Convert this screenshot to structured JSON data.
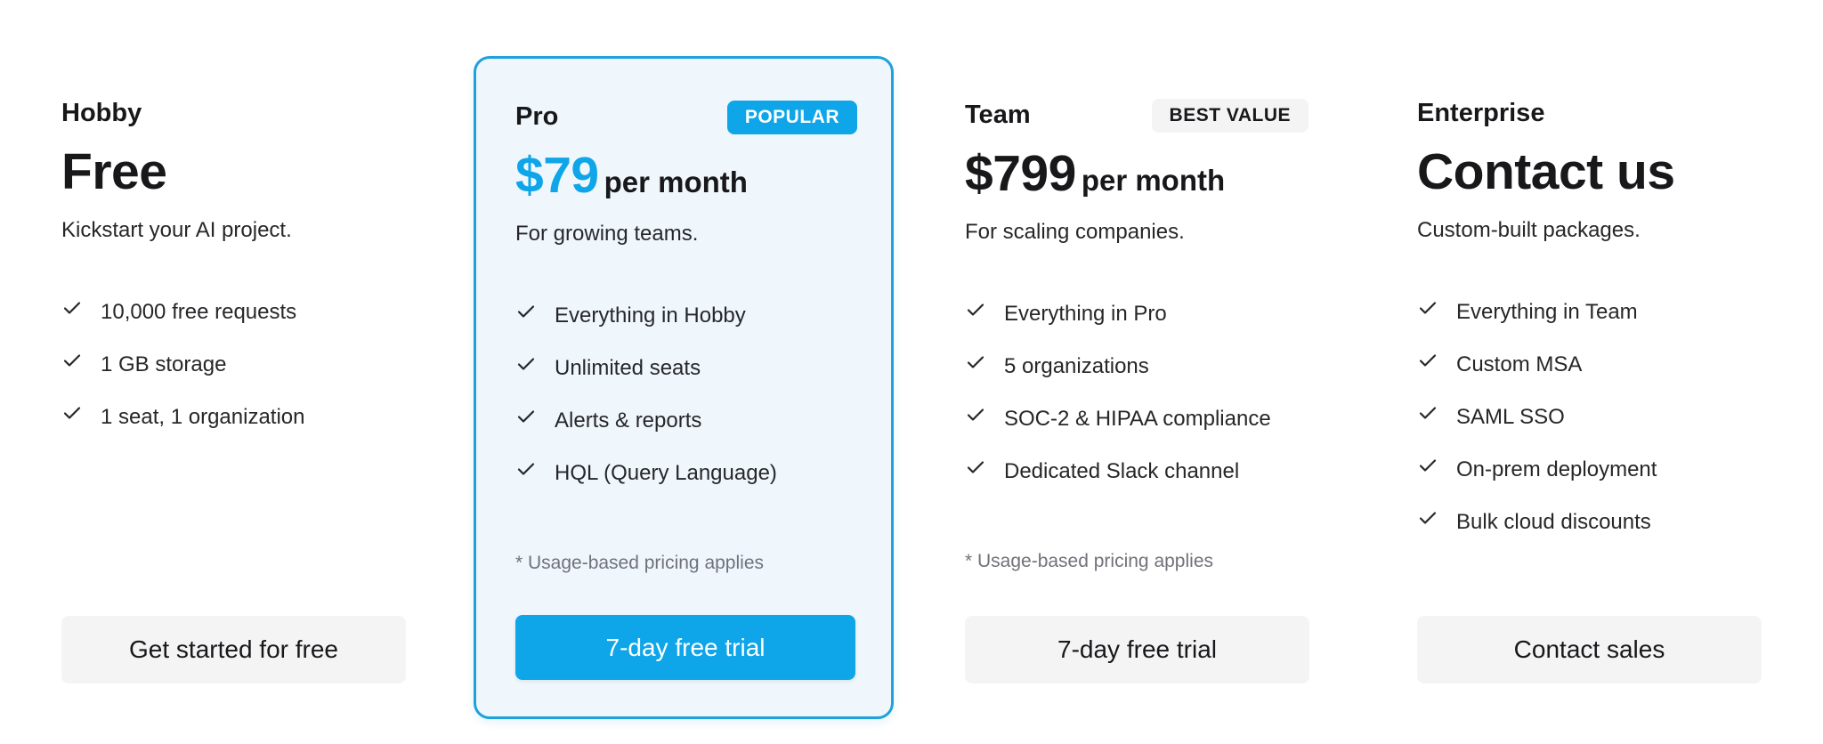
{
  "colors": {
    "accent": "#0ea5e9",
    "accent_border": "#1ea1dc",
    "card_highlight_bg": "#eff7fd",
    "secondary_button_bg": "#f4f4f5"
  },
  "plans": [
    {
      "name": "Hobby",
      "price": "Free",
      "price_unit": "",
      "tagline": "Kickstart your AI project.",
      "features": [
        "10,000 free requests",
        "1 GB storage",
        "1 seat, 1 organization"
      ],
      "note": "",
      "badge": "",
      "cta": "Get started for free",
      "cta_style": "secondary",
      "highlighted": false
    },
    {
      "name": "Pro",
      "price": "$79",
      "price_unit": "per month",
      "tagline": "For growing teams.",
      "features": [
        "Everything in Hobby",
        "Unlimited seats",
        "Alerts & reports",
        "HQL (Query Language)"
      ],
      "note": "* Usage-based pricing applies",
      "badge": "POPULAR",
      "cta": "7-day free trial",
      "cta_style": "primary",
      "highlighted": true
    },
    {
      "name": "Team",
      "price": "$799",
      "price_unit": "per month",
      "tagline": "For scaling companies.",
      "features": [
        "Everything in Pro",
        "5 organizations",
        "SOC-2 & HIPAA compliance",
        "Dedicated Slack channel"
      ],
      "note": "* Usage-based pricing applies",
      "badge": "BEST VALUE",
      "cta": "7-day free trial",
      "cta_style": "secondary",
      "highlighted": false
    },
    {
      "name": "Enterprise",
      "price": "Contact us",
      "price_unit": "",
      "tagline": "Custom-built packages.",
      "features": [
        "Everything in Team",
        "Custom MSA",
        "SAML SSO",
        "On-prem deployment",
        "Bulk cloud discounts"
      ],
      "note": "",
      "badge": "",
      "cta": "Contact sales",
      "cta_style": "secondary",
      "highlighted": false
    }
  ],
  "icons": {
    "feature": "check-icon"
  }
}
